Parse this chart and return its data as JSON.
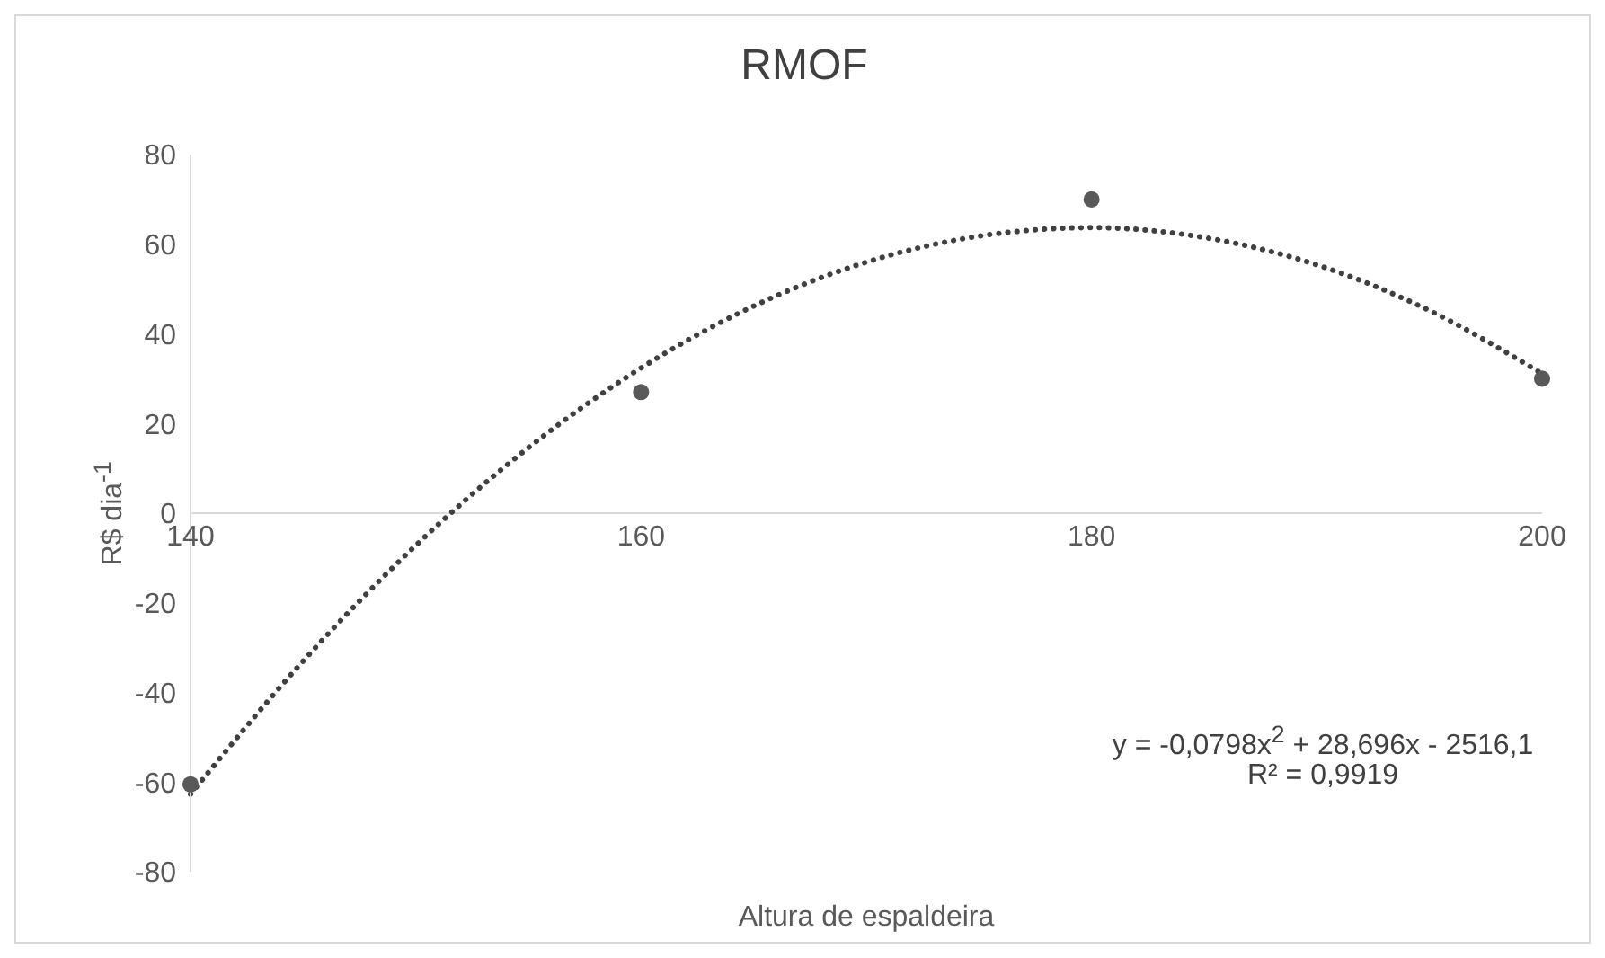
{
  "chart_data": {
    "type": "scatter",
    "title": "RMOF",
    "xlabel": "Altura de espaldeira",
    "ylabel": "R$ dia$^{-1}$",
    "xlim": [
      140,
      200
    ],
    "xticks": [
      140,
      160,
      180,
      200
    ],
    "ylim": [
      -80,
      80
    ],
    "yticks": [
      -80,
      -60,
      -40,
      -20,
      0,
      20,
      40,
      60,
      80
    ],
    "marker": "circle",
    "series": [
      {
        "color": "#595959",
        "x": [
          140,
          160,
          180,
          200
        ],
        "values": [
          -60.5,
          27,
          70,
          30
        ]
      },
      {
        "type": "line",
        "color": "#404040",
        "line_style": "dotted",
        "marker": "none",
        "x": [
          140,
          145,
          150,
          155,
          160,
          165,
          170,
          175,
          180,
          185,
          190,
          195,
          200
        ],
        "values": [
          -62.7,
          -33.0,
          -7.2,
          14.6,
          32.4,
          46.2,
          56.0,
          61.8,
          63.7,
          61.5,
          55.4,
          45.2,
          31.1
        ]
      }
    ],
    "annotations": [
      "y = -0,0798x$^{2}$ + 28,696x - 2516,1",
      "R² = 0,9919"
    ]
  }
}
